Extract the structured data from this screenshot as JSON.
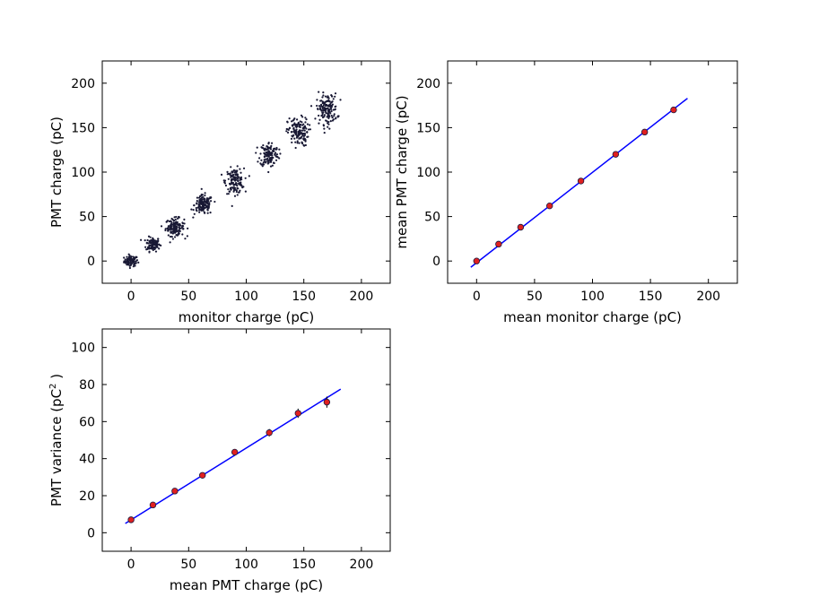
{
  "chart_data": [
    {
      "type": "scatter",
      "xlabel": "monitor charge (pC)",
      "ylabel": "PMT charge (pC)",
      "xlim": [
        -25,
        225
      ],
      "ylim": [
        -25,
        225
      ],
      "xticks": [
        0,
        50,
        100,
        150,
        200
      ],
      "yticks": [
        0,
        50,
        100,
        150,
        200
      ],
      "marker_color": "#191934",
      "clusters": [
        {
          "x": 0,
          "y": 0,
          "sx": 3,
          "sy": 3,
          "n": 80
        },
        {
          "x": 19,
          "y": 19,
          "sx": 3,
          "sy": 4,
          "n": 110
        },
        {
          "x": 38,
          "y": 38,
          "sx": 4,
          "sy": 5,
          "n": 130
        },
        {
          "x": 63,
          "y": 63,
          "sx": 4,
          "sy": 5.5,
          "n": 140
        },
        {
          "x": 90,
          "y": 90,
          "sx": 4,
          "sy": 7,
          "n": 140
        },
        {
          "x": 120,
          "y": 120,
          "sx": 4,
          "sy": 7,
          "n": 140
        },
        {
          "x": 145,
          "y": 145,
          "sx": 4.5,
          "sy": 8,
          "n": 140
        },
        {
          "x": 170,
          "y": 171,
          "sx": 4.5,
          "sy": 8.5,
          "n": 150
        }
      ]
    },
    {
      "type": "scatter",
      "xlabel": "mean monitor charge (pC)",
      "ylabel": "mean PMT charge (pC)",
      "xlim": [
        -25,
        225
      ],
      "ylim": [
        -25,
        225
      ],
      "xticks": [
        0,
        50,
        100,
        150,
        200
      ],
      "yticks": [
        0,
        50,
        100,
        150,
        200
      ],
      "x": [
        0,
        19,
        38,
        63,
        90,
        120,
        145,
        170
      ],
      "y": [
        0,
        19,
        38,
        62,
        90,
        120,
        145,
        170
      ],
      "marker_color": "#e02020",
      "fit": {
        "x": [
          -5,
          182
        ],
        "y": [
          -7,
          183
        ],
        "color": "#0000ff"
      }
    },
    {
      "type": "scatter",
      "xlabel": "mean PMT charge (pC)",
      "ylabel": "PMT variance (pC",
      "ylabel_sup": "2",
      "ylabel_tail": " )",
      "xlim": [
        -25,
        225
      ],
      "ylim": [
        -10,
        110
      ],
      "xticks": [
        0,
        50,
        100,
        150,
        200
      ],
      "yticks": [
        0,
        20,
        40,
        60,
        80,
        100
      ],
      "x": [
        0,
        19,
        38,
        62,
        90,
        120,
        145,
        170
      ],
      "y": [
        7,
        15,
        22.5,
        31,
        43.5,
        54,
        64.5,
        70.5
      ],
      "yerr": [
        0.6,
        0.8,
        1,
        1.2,
        1.5,
        2,
        2.5,
        3
      ],
      "marker_color": "#e02020",
      "fit": {
        "x": [
          -5,
          182
        ],
        "y": [
          5,
          77.5
        ],
        "color": "#0000ff"
      }
    }
  ]
}
